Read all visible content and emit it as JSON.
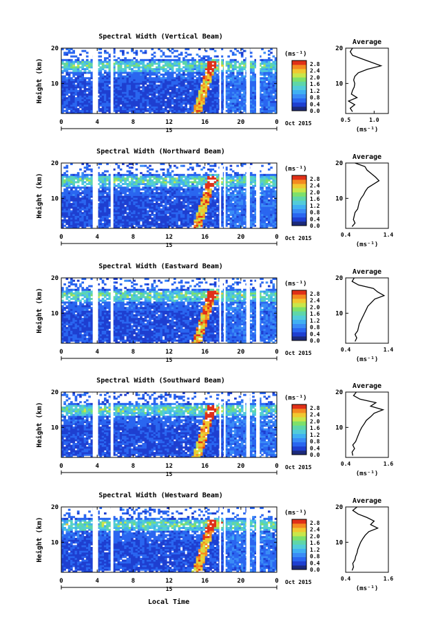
{
  "colors": {
    "bar": [
      "#1c2a7a",
      "#1e3fd0",
      "#2a66f0",
      "#3a8cf6",
      "#40b0f2",
      "#52ccd8",
      "#5fd6a8",
      "#7ee06a",
      "#c8e64a",
      "#f0c830",
      "#f48a20",
      "#e03018"
    ]
  },
  "date_label": "Oct 2015",
  "day_label": "15",
  "xlabel_main": "Local Time",
  "x_ticks": [
    "0",
    "4",
    "8",
    "12",
    "16",
    "20",
    "0"
  ],
  "y_label": "Height (km)",
  "y_ticks": [
    "20",
    "10"
  ],
  "unit_label": "(ms⁻¹)",
  "colorbar_ticks": [
    "2.8",
    "2.4",
    "2.0",
    "1.6",
    "1.2",
    "0.8",
    "0.4",
    "0.0"
  ],
  "avg_title": "Average",
  "avg_xlabel": "(ms⁻¹)",
  "chart_data": [
    {
      "type": "heatmap",
      "title": "Spectral Width (Vertical Beam)",
      "ylabel": "Height (km)",
      "xlabel": "",
      "xlim": [
        0,
        24
      ],
      "ylim": [
        1.5,
        20
      ],
      "colorbar": {
        "label": "(ms⁻¹)",
        "range": [
          0.0,
          3.0
        ],
        "ticks": [
          0.0,
          0.4,
          0.8,
          1.2,
          1.6,
          2.0,
          2.4,
          2.8
        ]
      },
      "data_gaps_hours": [
        [
          3.5,
          4.1
        ],
        [
          5.5,
          5.8
        ],
        [
          17.6,
          17.8
        ],
        [
          18.1,
          18.3
        ],
        [
          20.6,
          21.0
        ],
        [
          21.7,
          22.1
        ]
      ],
      "average_profile": {
        "title": "Average",
        "xlabel": "(ms⁻¹)",
        "xticks": [
          "0.5",
          "1.0"
        ],
        "xlim": [
          0.5,
          1.25
        ],
        "yticks": [
          "20",
          "10"
        ],
        "height_km": [
          2,
          3,
          4,
          5,
          6,
          7,
          8,
          9,
          10,
          11,
          12,
          13,
          14,
          15,
          16,
          17,
          18,
          19,
          20
        ],
        "width_ms": [
          0.62,
          0.58,
          0.66,
          0.55,
          0.7,
          0.6,
          0.62,
          0.65,
          0.66,
          0.64,
          0.66,
          0.72,
          0.88,
          1.12,
          0.95,
          0.78,
          0.62,
          0.58,
          0.62
        ]
      }
    },
    {
      "type": "heatmap",
      "title": "Spectral Width (Northward Beam)",
      "ylabel": "Height (km)",
      "xlabel": "",
      "xlim": [
        0,
        24
      ],
      "ylim": [
        1.5,
        20
      ],
      "colorbar": {
        "label": "(ms⁻¹)",
        "range": [
          0.0,
          3.0
        ],
        "ticks": [
          0.0,
          0.4,
          0.8,
          1.2,
          1.6,
          2.0,
          2.4,
          2.8
        ]
      },
      "data_gaps_hours": [
        [
          3.5,
          4.1
        ],
        [
          5.5,
          5.8
        ],
        [
          17.6,
          17.8
        ],
        [
          18.1,
          18.3
        ],
        [
          20.6,
          21.0
        ],
        [
          21.7,
          22.1
        ]
      ],
      "average_profile": {
        "title": "Average",
        "xlabel": "(ms⁻¹)",
        "xticks": [
          "0.4",
          "1.4"
        ],
        "xlim": [
          0.4,
          1.4
        ],
        "yticks": [
          "20",
          "10"
        ],
        "height_km": [
          2,
          3,
          4,
          5,
          6,
          7,
          8,
          9,
          10,
          11,
          12,
          13,
          14,
          15,
          16,
          17,
          18,
          19,
          20
        ],
        "width_ms": [
          0.55,
          0.62,
          0.58,
          0.6,
          0.62,
          0.68,
          0.7,
          0.72,
          0.76,
          0.82,
          0.86,
          0.92,
          1.05,
          1.18,
          1.1,
          1.0,
          0.9,
          0.85,
          0.62
        ]
      }
    },
    {
      "type": "heatmap",
      "title": "Spectral Width (Eastward Beam)",
      "ylabel": "Height (km)",
      "xlabel": "",
      "xlim": [
        0,
        24
      ],
      "ylim": [
        1.5,
        20
      ],
      "colorbar": {
        "label": "(ms⁻¹)",
        "range": [
          0.0,
          3.0
        ],
        "ticks": [
          0.0,
          0.4,
          0.8,
          1.2,
          1.6,
          2.0,
          2.4,
          2.8
        ]
      },
      "data_gaps_hours": [
        [
          3.5,
          4.1
        ],
        [
          5.5,
          5.8
        ],
        [
          17.6,
          17.8
        ],
        [
          18.1,
          18.3
        ],
        [
          20.6,
          21.0
        ],
        [
          21.7,
          22.1
        ]
      ],
      "average_profile": {
        "title": "Average",
        "xlabel": "(ms⁻¹)",
        "xticks": [
          "0.4",
          "1.4"
        ],
        "xlim": [
          0.4,
          1.4
        ],
        "yticks": [
          "20",
          "10"
        ],
        "height_km": [
          2,
          3,
          4,
          5,
          6,
          7,
          8,
          9,
          10,
          11,
          12,
          13,
          14,
          15,
          16,
          17,
          18,
          19,
          20
        ],
        "width_ms": [
          0.62,
          0.66,
          0.62,
          0.68,
          0.7,
          0.72,
          0.76,
          0.8,
          0.84,
          0.88,
          0.92,
          1.0,
          1.08,
          1.3,
          1.15,
          1.05,
          0.7,
          0.55,
          0.6
        ]
      }
    },
    {
      "type": "heatmap",
      "title": "Spectral Width (Southward Beam)",
      "ylabel": "Height (km)",
      "xlabel": "",
      "xlim": [
        0,
        24
      ],
      "ylim": [
        1.5,
        20
      ],
      "colorbar": {
        "label": "(ms⁻¹)",
        "range": [
          0.0,
          3.0
        ],
        "ticks": [
          0.0,
          0.4,
          0.8,
          1.2,
          1.6,
          2.0,
          2.4,
          2.8
        ]
      },
      "data_gaps_hours": [
        [
          3.5,
          4.1
        ],
        [
          5.5,
          5.8
        ],
        [
          17.6,
          17.8
        ],
        [
          18.1,
          18.3
        ],
        [
          20.6,
          21.0
        ],
        [
          21.7,
          22.1
        ]
      ],
      "average_profile": {
        "title": "Average",
        "xlabel": "(ms⁻¹)",
        "xticks": [
          "0.4",
          "1.6"
        ],
        "xlim": [
          0.4,
          1.6
        ],
        "yticks": [
          "20",
          "10"
        ],
        "height_km": [
          2,
          3,
          4,
          5,
          6,
          7,
          8,
          9,
          10,
          11,
          12,
          13,
          14,
          15,
          16,
          17,
          18,
          19,
          20
        ],
        "width_ms": [
          0.6,
          0.58,
          0.65,
          0.6,
          0.68,
          0.72,
          0.76,
          0.8,
          0.85,
          0.92,
          0.98,
          1.1,
          1.2,
          1.45,
          1.1,
          1.25,
          0.8,
          0.62,
          0.7
        ]
      }
    },
    {
      "type": "heatmap",
      "title": "Spectral Width (Westward Beam)",
      "ylabel": "Height (km)",
      "xlabel": "Local Time",
      "xlim": [
        0,
        24
      ],
      "ylim": [
        1.5,
        20
      ],
      "colorbar": {
        "label": "(ms⁻¹)",
        "range": [
          0.0,
          3.0
        ],
        "ticks": [
          0.0,
          0.4,
          0.8,
          1.2,
          1.6,
          2.0,
          2.4,
          2.8
        ]
      },
      "data_gaps_hours": [
        [
          3.5,
          4.1
        ],
        [
          5.5,
          5.8
        ],
        [
          17.6,
          17.8
        ],
        [
          18.1,
          18.3
        ],
        [
          20.6,
          21.0
        ],
        [
          21.7,
          22.1
        ]
      ],
      "average_profile": {
        "title": "Average",
        "xlabel": "(ms⁻¹)",
        "xticks": [
          "0.4",
          "1.6"
        ],
        "xlim": [
          0.4,
          1.6
        ],
        "yticks": [
          "20",
          "10"
        ],
        "height_km": [
          2,
          3,
          4,
          5,
          6,
          7,
          8,
          9,
          10,
          11,
          12,
          13,
          14,
          15,
          16,
          17,
          18,
          19,
          20
        ],
        "width_ms": [
          0.58,
          0.62,
          0.6,
          0.66,
          0.68,
          0.72,
          0.74,
          0.78,
          0.82,
          0.88,
          0.95,
          1.05,
          1.3,
          1.1,
          1.2,
          1.0,
          0.75,
          0.6,
          0.72
        ]
      }
    }
  ]
}
